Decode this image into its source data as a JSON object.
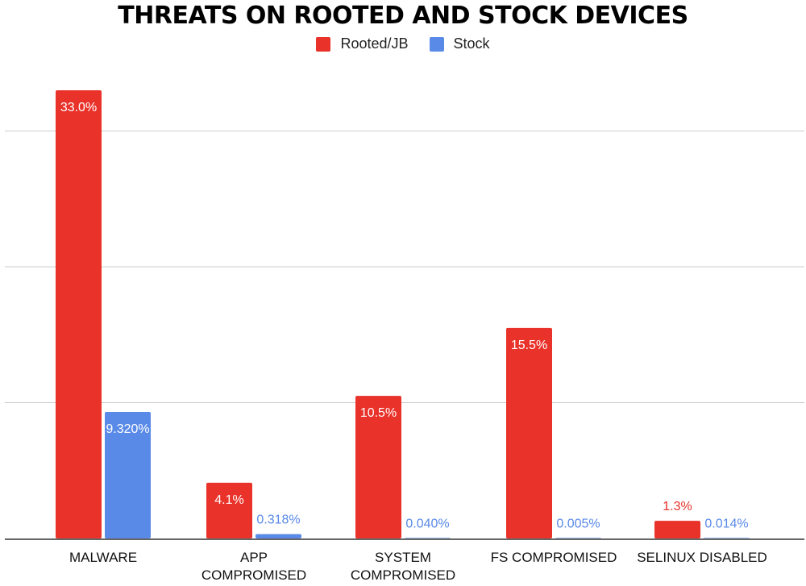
{
  "chart_data": {
    "type": "bar",
    "title": "THREATS ON ROOTED AND STOCK DEVICES",
    "categories": [
      [
        "MALWARE"
      ],
      [
        "APP",
        "COMPROMISED"
      ],
      [
        "SYSTEM",
        "COMPROMISED"
      ],
      [
        "FS COMPROMISED"
      ],
      [
        "SELINUX DISABLED"
      ]
    ],
    "series": [
      {
        "name": "Rooted/JB",
        "color": "#e8322a",
        "values": [
          33.0,
          4.1,
          10.5,
          15.5,
          1.3
        ],
        "labels": [
          "33.0%",
          "4.1%",
          "10.5%",
          "15.5%",
          "1.3%"
        ]
      },
      {
        "name": "Stock",
        "color": "#5a8ae8",
        "values": [
          9.32,
          0.318,
          0.04,
          0.005,
          0.014
        ],
        "labels": [
          "9.320%",
          "0.318%",
          "0.040%",
          "0.005%",
          "0.014%"
        ]
      }
    ],
    "xlabel": "",
    "ylabel": "",
    "ylim": [
      0,
      30
    ],
    "gridlines": [
      10,
      20,
      30
    ],
    "y_tick_labels_shown": false,
    "grid": true,
    "legend_position": "top-center"
  },
  "colors": {
    "grid": "#cccccc",
    "axis": "#333333",
    "category_label": "#111111"
  }
}
